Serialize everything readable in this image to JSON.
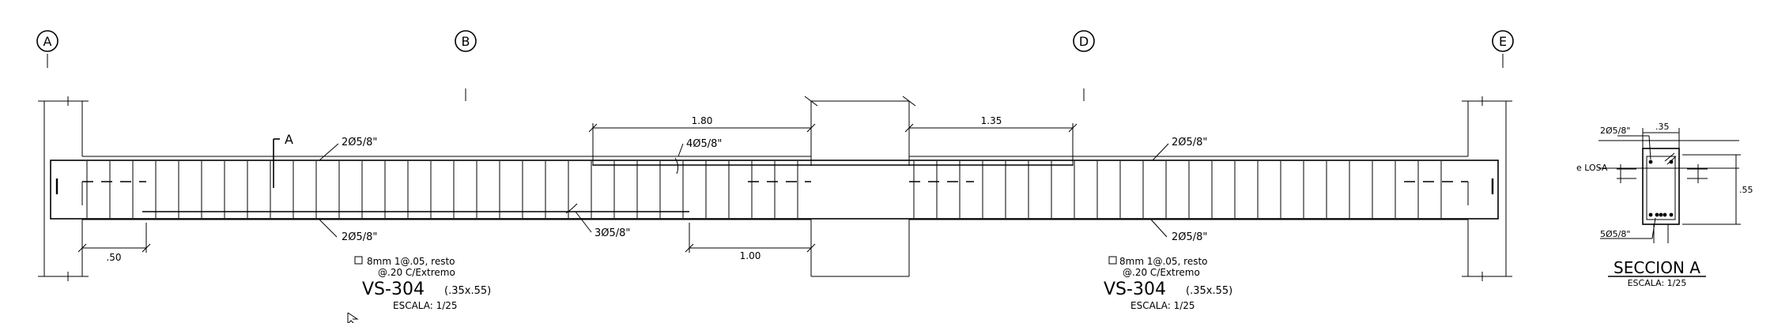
{
  "axes": [
    "A",
    "B",
    "D",
    "E"
  ],
  "callouts": {
    "top_left": "2Ø5/8\"",
    "top_mid": "4Ø5/8\"",
    "top_right": "2Ø5/8\"",
    "bottom_left": "2Ø5/8\"",
    "bottom_mid": "3Ø5/8\"",
    "bottom_right": "2Ø5/8\""
  },
  "dimensions": {
    "d180": "1.80",
    "d135": "1.35",
    "d050": ".50",
    "d100": "1.00"
  },
  "section_marker": "A",
  "beams": [
    {
      "stirrups_line1": "8mm 1@.05, resto",
      "stirrups_line2": "@.20 C/Extremo",
      "name": "VS-304",
      "size": "(.35x.55)",
      "scale": "ESCALA: 1/25"
    },
    {
      "stirrups_line1": "8mm 1@.05, resto",
      "stirrups_line2": "@.20 C/Extremo",
      "name": "VS-304",
      "size": "(.35x.55)",
      "scale": "ESCALA: 1/25"
    }
  ],
  "section": {
    "title": "SECCION A",
    "scale": "ESCALA: 1/25",
    "top_bars": "2Ø5/8\"",
    "bottom_bars": "5Ø5/8\"",
    "width": ".35",
    "height": ".55",
    "slab": "e LOSA"
  }
}
